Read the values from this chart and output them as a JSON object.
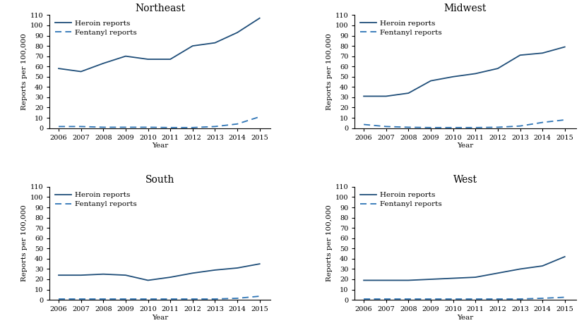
{
  "years": [
    2006,
    2007,
    2008,
    2009,
    2010,
    2011,
    2012,
    2013,
    2014,
    2015
  ],
  "regions": [
    "Northeast",
    "Midwest",
    "South",
    "West"
  ],
  "heroin": {
    "Northeast": [
      58,
      55,
      63,
      70,
      67,
      67,
      80,
      83,
      93,
      107
    ],
    "Midwest": [
      31,
      31,
      34,
      46,
      50,
      53,
      58,
      71,
      73,
      79
    ],
    "South": [
      24,
      24,
      25,
      24,
      19,
      22,
      26,
      29,
      31,
      35
    ],
    "West": [
      19,
      19,
      19,
      20,
      21,
      22,
      26,
      30,
      33,
      42
    ]
  },
  "fentanyl": {
    "Northeast": [
      1.5,
      1.5,
      0.8,
      0.8,
      0.8,
      0.5,
      0.5,
      1.5,
      4,
      11
    ],
    "Midwest": [
      3.5,
      1.5,
      0.8,
      0.5,
      0.5,
      0.5,
      0.8,
      2,
      5.5,
      8
    ],
    "South": [
      0.8,
      0.8,
      0.8,
      0.8,
      0.8,
      0.8,
      0.8,
      0.8,
      1.5,
      3.5
    ],
    "West": [
      0.8,
      0.8,
      0.8,
      0.8,
      0.8,
      0.8,
      0.8,
      0.8,
      1.5,
      2.5
    ]
  },
  "heroin_color": "#1f4e79",
  "fentanyl_color": "#2e75b6",
  "ylabel": "Reports per 100,000",
  "xlabel": "Year",
  "ylim": [
    0,
    110
  ],
  "yticks": [
    0,
    10,
    20,
    30,
    40,
    50,
    60,
    70,
    80,
    90,
    100,
    110
  ],
  "legend_heroin": "Heroin reports",
  "legend_fentanyl": "Fentanyl reports",
  "title_fontsize": 10,
  "label_fontsize": 7.5,
  "tick_fontsize": 7,
  "legend_fontsize": 7.5
}
